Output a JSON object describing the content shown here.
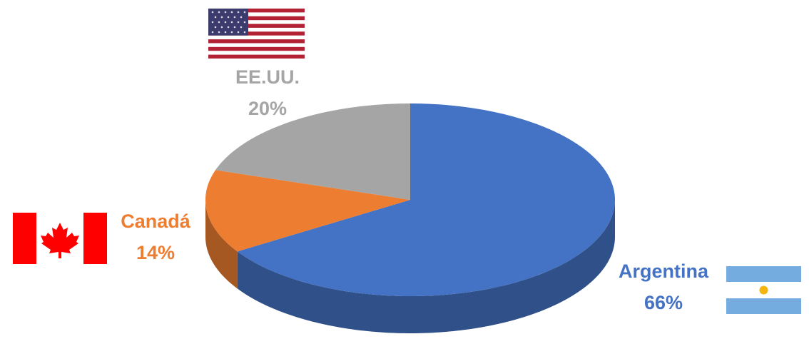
{
  "chart_data": {
    "type": "pie",
    "categories": [
      "Argentina",
      "Canadá",
      "EE.UU."
    ],
    "values": [
      66,
      14,
      20
    ],
    "value_labels": [
      "66%",
      "14%",
      "20%"
    ],
    "colors": [
      "#4472c4",
      "#ed7d31",
      "#a5a5a5"
    ]
  }
}
